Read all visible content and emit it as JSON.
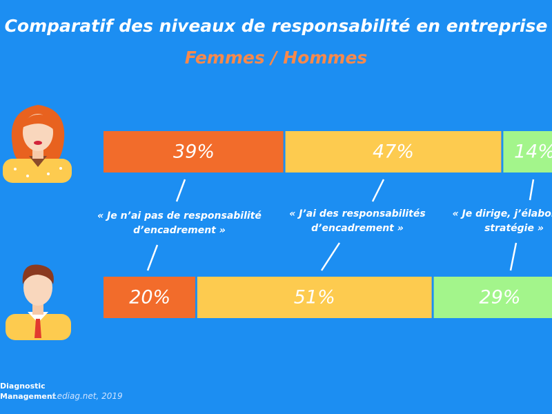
{
  "chart_data": {
    "type": "stacked_bar_horizontal",
    "title": "Comparatif des niveaux de responsabilité en entreprise",
    "subtitle": "Femmes / Hommes",
    "categories": [
      null,
      null
    ],
    "xlim": [
      0,
      100
    ],
    "series": [
      {
        "name": "« Je n’ai pas de responsabilité d’encadrement »",
        "color": "#f26c2b",
        "values": [
          39,
          20
        ],
        "value_labels": [
          "39%",
          "20%"
        ]
      },
      {
        "name": "« J’ai des responsabilités d’encadrement »",
        "color": "#fdcb4f",
        "values": [
          47,
          51
        ],
        "value_labels": [
          "47%",
          "51%"
        ]
      },
      {
        "name": "« Je dirige, j’élabore la stratégie »",
        "color": "#a3f58b",
        "values": [
          14,
          29
        ],
        "value_labels": [
          "14%",
          "29%"
        ]
      }
    ]
  },
  "footer": {
    "logo": [
      "Diagnostic",
      "Management"
    ],
    "source": "Lediag.net, 2019"
  }
}
